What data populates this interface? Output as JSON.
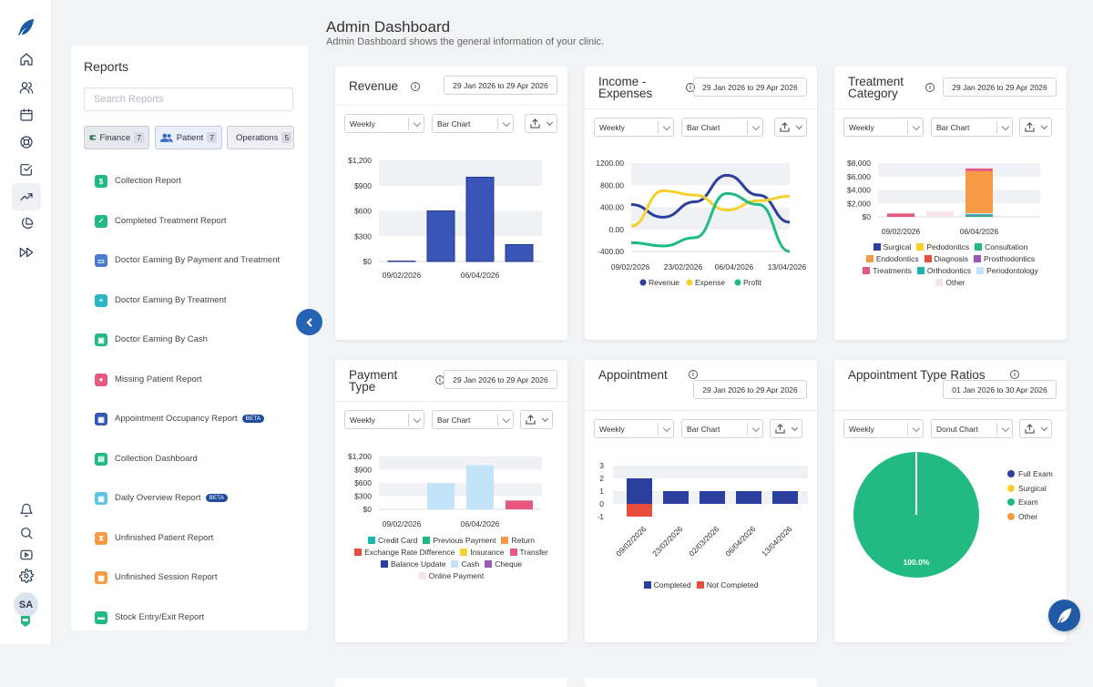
{
  "colors": {
    "brand": "#1f5aa6",
    "primary": "#2563b4",
    "bar_blue": "#3a55b8",
    "light_blue": "#c3e3f8",
    "pink": "#e7587e",
    "red": "#e74c3c",
    "yellow": "#f6d12d",
    "green": "#21ba83",
    "orange": "#f79a45"
  },
  "sidebar_icons": [
    "logo-feather-icon",
    "home-icon",
    "users-icon",
    "calendar-icon",
    "support-icon",
    "checkbox-icon",
    "trend-icon",
    "pie-icon",
    "fast-forward-icon",
    "bell-icon",
    "search-icon",
    "video-icon",
    "gear-icon"
  ],
  "user": {
    "initials": "SA"
  },
  "reports": {
    "title": "Reports",
    "search_placeholder": "Search Reports",
    "categories": [
      {
        "label": "Finance",
        "count": "7"
      },
      {
        "label": "Patient",
        "count": "7"
      },
      {
        "label": "Operations",
        "count": "5"
      }
    ],
    "items": [
      {
        "label": "Collection Report",
        "icon": "dollar-icon",
        "color": "#21ba83",
        "beta": ""
      },
      {
        "label": "Completed Treatment Report",
        "icon": "check-icon",
        "color": "#21ba83",
        "beta": ""
      },
      {
        "label": "Doctor Earning By Payment and Treatment",
        "icon": "card-icon",
        "color": "#4a7bd0",
        "beta": ""
      },
      {
        "label": "Doctor Earning By Treatment",
        "icon": "medkit-icon",
        "color": "#2bb5c9",
        "beta": ""
      },
      {
        "label": "Doctor Earning By Cash",
        "icon": "cash-icon",
        "color": "#21ba83",
        "beta": ""
      },
      {
        "label": "Missing Patient Report",
        "icon": "users-icon",
        "color": "#e7587e",
        "beta": ""
      },
      {
        "label": "Appointment Occupancy Report",
        "icon": "calendar-icon",
        "color": "#3a55b8",
        "beta": "BETA"
      },
      {
        "label": "Collection Dashboard",
        "icon": "dashboard-icon",
        "color": "#21ba83",
        "beta": ""
      },
      {
        "label": "Daily Overview Report",
        "icon": "calendar-icon",
        "color": "#5ec3e3",
        "beta": "BETA"
      },
      {
        "label": "Unfinished Patient Report",
        "icon": "hourglass-icon",
        "color": "#f79a45",
        "beta": ""
      },
      {
        "label": "Unfinished Session Report",
        "icon": "calendar-icon",
        "color": "#f79a45",
        "beta": ""
      },
      {
        "label": "Stock Entry/Exit Report",
        "icon": "box-icon",
        "color": "#21ba83",
        "beta": ""
      }
    ]
  },
  "header": {
    "title": "Admin Dashboard",
    "subtitle": "Admin Dashboard shows the general information of your clinic."
  },
  "cards": {
    "revenue": {
      "title": "Revenue",
      "date": "29 Jan 2026 to 29 Apr 2026",
      "period": "Weekly",
      "chart_type": "Bar Chart"
    },
    "income": {
      "title": "Income - Expenses",
      "date": "29 Jan 2026 to 29 Apr 2026",
      "period": "Weekly",
      "chart_type": "Bar Chart"
    },
    "treatment": {
      "title": "Treatment Category",
      "date": "29 Jan 2026 to 29 Apr 2026",
      "period": "Weekly",
      "chart_type": "Bar Chart"
    },
    "payment": {
      "title": "Payment Type",
      "date": "29 Jan 2026 to 29 Apr 2026",
      "period": "Weekly",
      "chart_type": "Bar Chart"
    },
    "appointment": {
      "title": "Appointment",
      "date": "29 Jan 2026 to 29 Apr 2026",
      "period": "Weekly",
      "chart_type": "Bar Chart"
    },
    "ratios": {
      "title": "Appointment Type Ratios",
      "date": "01 Jan 2026 to 30 Apr 2026",
      "period": "Weekly",
      "chart_type": "Donut Chart"
    }
  },
  "chart_data": [
    {
      "id": "revenue",
      "type": "bar",
      "yticks": [
        "$1,200",
        "$900",
        "$600",
        "$300",
        "$0"
      ],
      "ylim": [
        0,
        1200
      ],
      "x_labels": [
        "09/02/2026",
        "06/04/2026"
      ],
      "values": [
        5,
        600,
        1000,
        200
      ]
    },
    {
      "id": "income",
      "type": "line",
      "yticks": [
        "1200.00",
        "800.00",
        "400.00",
        "0.00",
        "-400.00"
      ],
      "ylim": [
        -400,
        1200
      ],
      "x_labels": [
        "09/02/2026",
        "23/02/2026",
        "06/04/2026",
        "13/04/2026"
      ],
      "series": [
        {
          "name": "Revenue",
          "color": "#2a3f9e",
          "values": [
            450,
            220,
            500,
            980,
            620,
            130
          ]
        },
        {
          "name": "Expense",
          "color": "#f6d12d",
          "values": [
            60,
            700,
            620,
            350,
            520,
            600
          ]
        },
        {
          "name": "Profit",
          "color": "#21ba83",
          "values": [
            -240,
            -300,
            -150,
            650,
            450,
            -400
          ]
        }
      ]
    },
    {
      "id": "treatment",
      "type": "stacked-bar",
      "yticks": [
        "$8,000",
        "$6,000",
        "$4,000",
        "$2,000",
        "$0"
      ],
      "ylim": [
        0,
        8000
      ],
      "x_labels": [
        "09/02/2026",
        "06/04/2026"
      ],
      "stacks": [
        {
          "Treatments": 500
        },
        {
          "Other": 800
        },
        {
          "Consultation": 200,
          "Prosthodontics": 100,
          "Orthodontics": 100,
          "Periodontology": 150,
          "Endodontics": 6250,
          "Treatments": 400
        }
      ],
      "legend": [
        {
          "name": "Surgical",
          "color": "#2a3f9e"
        },
        {
          "name": "Pedodontics",
          "color": "#f6d12d"
        },
        {
          "name": "Consultation",
          "color": "#21ba83"
        },
        {
          "name": "Endodontics",
          "color": "#f79a45"
        },
        {
          "name": "Diagnosis",
          "color": "#e74c3c"
        },
        {
          "name": "Prosthodontics",
          "color": "#9b59b6"
        },
        {
          "name": "Treatments",
          "color": "#e7587e"
        },
        {
          "name": "Orthodontics",
          "color": "#18b8b0"
        },
        {
          "name": "Periodontology",
          "color": "#c3e3f8"
        },
        {
          "name": "Other",
          "color": "#f7e4e7"
        }
      ]
    },
    {
      "id": "payment",
      "type": "bar",
      "yticks": [
        "$1,200",
        "$900",
        "$600",
        "$300",
        "$0"
      ],
      "ylim": [
        0,
        1200
      ],
      "x_labels": [
        "09/02/2026",
        "06/04/2026"
      ],
      "values": [
        600,
        1000,
        200
      ],
      "legend": [
        {
          "name": "Credit Card",
          "color": "#18b8b0"
        },
        {
          "name": "Previous Payment",
          "color": "#21ba83"
        },
        {
          "name": "Return",
          "color": "#f79a45"
        },
        {
          "name": "Exchange Rate Difference",
          "color": "#e74c3c"
        },
        {
          "name": "Insurance",
          "color": "#f6d12d"
        },
        {
          "name": "Transfer",
          "color": "#e7587e"
        },
        {
          "name": "Balance Update",
          "color": "#2a3f9e"
        },
        {
          "name": "Cash",
          "color": "#c3e3f8"
        },
        {
          "name": "Cheque",
          "color": "#9b59b6"
        },
        {
          "name": "Online Payment",
          "color": "#f7e4e7"
        }
      ]
    },
    {
      "id": "appointment",
      "type": "stacked-bar",
      "yticks": [
        "3",
        "2",
        "1",
        "0",
        "-1"
      ],
      "ylim": [
        -1,
        3
      ],
      "x_labels": [
        "09/02/2026",
        "23/02/2026",
        "02/03/2026",
        "06/04/2026",
        "13/04/2026"
      ],
      "series": [
        {
          "name": "Completed",
          "color": "#2a3f9e",
          "values": [
            2,
            1,
            1,
            1,
            1
          ]
        },
        {
          "name": "Not Completed",
          "color": "#e74c3c",
          "values": [
            -1,
            0,
            0,
            0,
            0
          ]
        }
      ]
    },
    {
      "id": "ratios",
      "type": "pie",
      "center_label": "100.0%",
      "slices": [
        {
          "name": "Full Exam",
          "value": 0,
          "color": "#2a3f9e"
        },
        {
          "name": "Surgical",
          "value": 0,
          "color": "#f6d12d"
        },
        {
          "name": "Exam",
          "value": 100,
          "color": "#21ba83"
        },
        {
          "name": "Other",
          "value": 0,
          "color": "#f79a45"
        }
      ]
    }
  ]
}
